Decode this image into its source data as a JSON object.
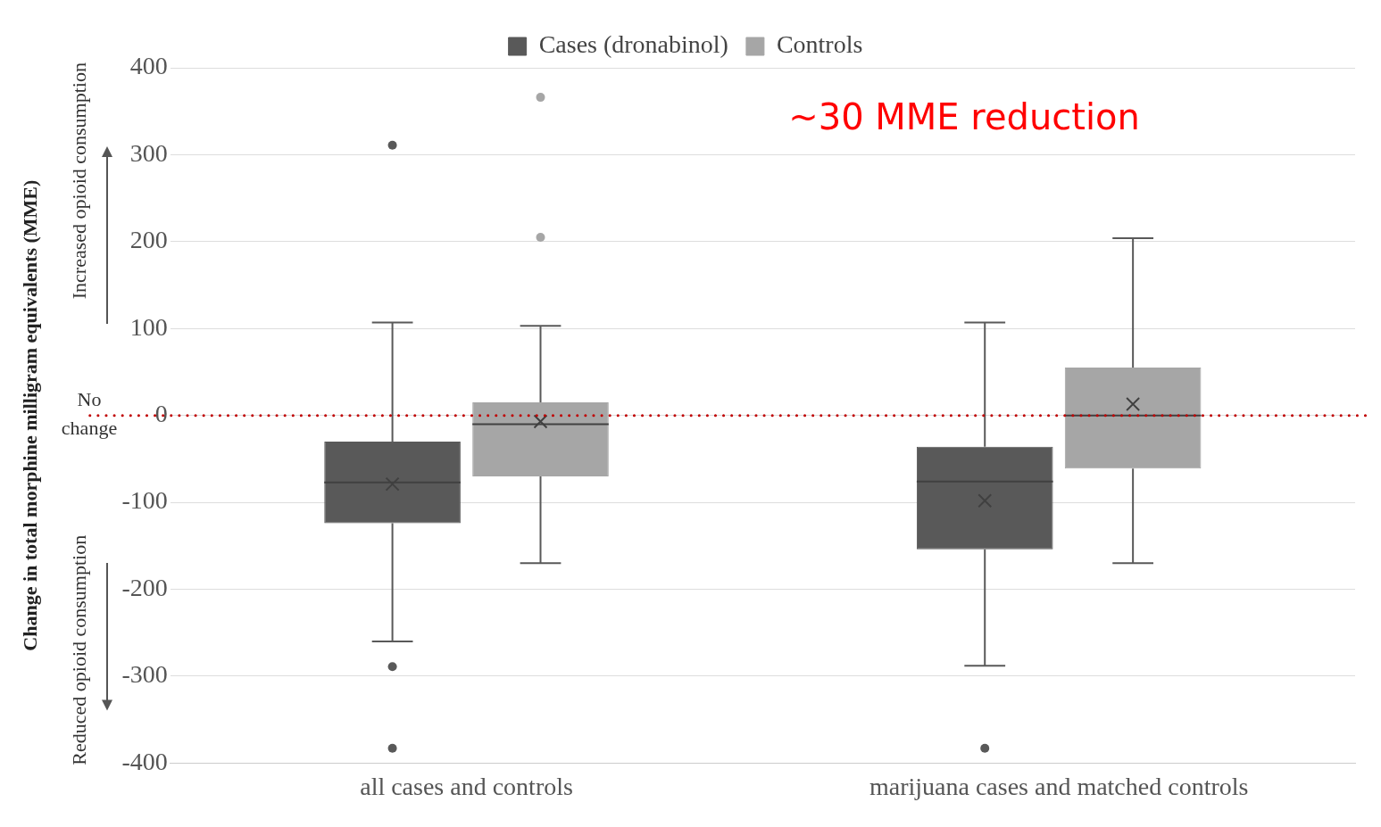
{
  "chart_data": {
    "type": "box",
    "ylabel": "Change in total morphine milligram equivalents (MME)",
    "categories": [
      "all cases and controls",
      "marijuana cases and matched controls"
    ],
    "series": [
      {
        "name": "Cases (dronabinol)",
        "color": "#595959",
        "boxes": [
          {
            "low": -260,
            "q1": -124,
            "median": -77,
            "q3": -30,
            "high": 107,
            "mean": -79,
            "outliers": [
              311,
              -289,
              -383
            ]
          },
          {
            "low": -288,
            "q1": -154,
            "median": -76,
            "q3": -36,
            "high": 107,
            "mean": -98,
            "outliers": [
              -383
            ]
          }
        ]
      },
      {
        "name": "Controls",
        "color": "#a6a6a6",
        "boxes": [
          {
            "low": -170,
            "q1": -70,
            "median": -10,
            "q3": 15,
            "high": 103,
            "mean": -7,
            "outliers": [
              366,
              205
            ]
          },
          {
            "low": -170,
            "q1": -61,
            "median": 0,
            "q3": 55,
            "high": 204,
            "mean": 13
          }
        ]
      }
    ],
    "ylim": [
      -400,
      400
    ],
    "yticks": [
      -400,
      -300,
      -200,
      -100,
      0,
      100,
      200,
      300,
      400
    ],
    "grid": "y",
    "legend": "top",
    "ref_lines": [
      {
        "axis": "y",
        "value": 0,
        "color": "#c00000",
        "line_style": "dotted"
      }
    ],
    "annotations": [
      "~30 MME reduction",
      "Increased opioid consumption",
      "No change",
      "Reduced opioid consumption"
    ]
  }
}
